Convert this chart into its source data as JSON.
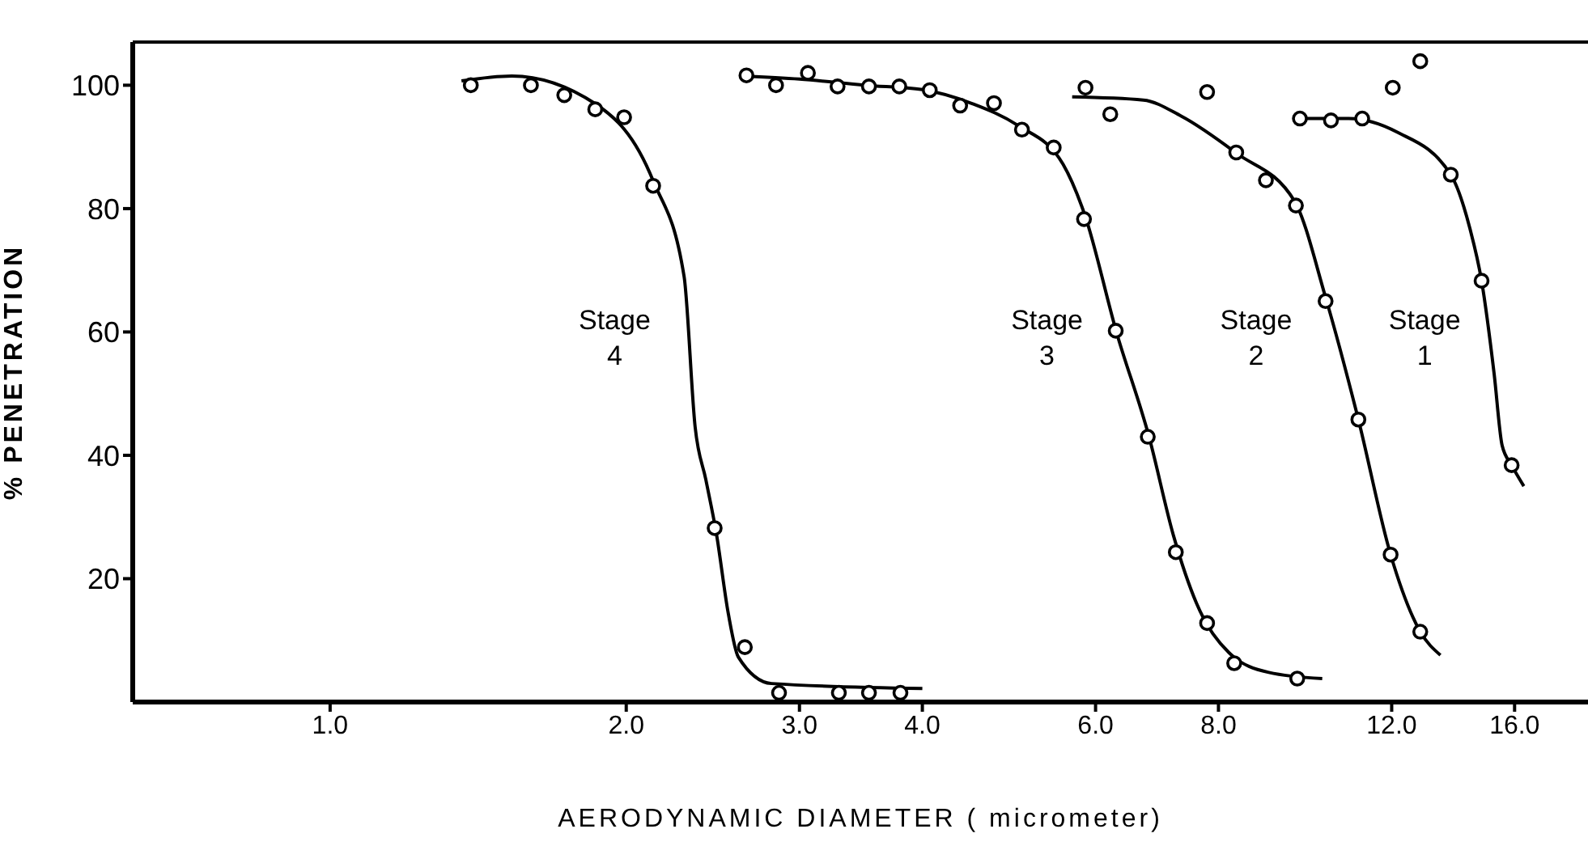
{
  "chart_data": {
    "type": "scatter",
    "xlabel": "AERODYNAMIC DIAMETER ( micrometer)",
    "ylabel": "% PENETRATION",
    "log": "x",
    "marker": "circle",
    "grid": false,
    "xlim": [
      0.63,
      19
    ],
    "ylim": [
      0,
      107
    ],
    "xticks": [
      {
        "value": 1,
        "label": "1.0"
      },
      {
        "value": 2,
        "label": "2.0"
      },
      {
        "value": 3,
        "label": "3.0"
      },
      {
        "value": 4,
        "label": "4.0"
      },
      {
        "value": 6,
        "label": "6.0"
      },
      {
        "value": 8,
        "label": "8.0"
      },
      {
        "value": 12,
        "label": "12.0"
      },
      {
        "value": 16,
        "label": "16.0"
      }
    ],
    "yticks": [
      20,
      40,
      60,
      80,
      100
    ],
    "series": [
      {
        "color": "#000000",
        "x": [
          1.39,
          1.6,
          1.73,
          1.86,
          1.99,
          2.13,
          2.46,
          2.64,
          2.86,
          3.29,
          3.53,
          3.8
        ],
        "values": [
          100,
          100,
          98.4,
          96.1,
          94.8,
          83.7,
          28.2,
          8.9,
          1.5,
          1.5,
          1.5,
          1.5
        ]
      },
      {
        "type": "line",
        "marker": "none",
        "color": "#000000",
        "x": [
          1.36,
          1.53,
          1.86,
          2.13,
          2.29,
          2.35,
          2.41,
          2.47,
          2.54,
          2.6,
          2.81,
          4.0
        ],
        "values": [
          100.7,
          101.5,
          97,
          84.5,
          69,
          44.6,
          36,
          27.3,
          14.3,
          7.3,
          3,
          2.2
        ]
      },
      {
        "color": "#000000",
        "x": [
          2.65,
          2.84,
          3.06,
          3.28,
          3.53,
          3.79,
          4.07,
          4.37,
          4.73,
          5.05,
          5.44,
          5.84,
          6.29,
          6.78,
          7.24,
          7.79,
          8.3,
          9.62
        ],
        "values": [
          101.6,
          100,
          102,
          99.8,
          99.8,
          99.8,
          99.2,
          96.7,
          97.1,
          92.8,
          89.9,
          78.3,
          60.2,
          43,
          24.3,
          12.8,
          6.3,
          3.8
        ]
      },
      {
        "type": "line",
        "marker": "none",
        "color": "#000000",
        "x": [
          2.62,
          3.0,
          3.5,
          4.0,
          4.5,
          5.0,
          5.56,
          5.85,
          6.3,
          6.8,
          7.2,
          7.6,
          8.2,
          9.0,
          10.2
        ],
        "values": [
          101.5,
          101,
          100,
          99.3,
          97,
          93.5,
          87.2,
          79,
          60,
          43,
          27,
          16,
          8,
          4.8,
          3.8
        ]
      },
      {
        "color": "#000000",
        "x": [
          5.86,
          6.21,
          7.79,
          8.34,
          8.94,
          9.59,
          10.28,
          11.1,
          11.97,
          12.83
        ],
        "values": [
          99.6,
          95.3,
          98.9,
          89.1,
          84.6,
          80.5,
          65,
          45.8,
          23.9,
          11.4
        ]
      },
      {
        "type": "line",
        "marker": "none",
        "color": "#000000",
        "x": [
          5.68,
          6.71,
          7.33,
          8.34,
          9.56,
          10.28,
          11.1,
          11.97,
          12.83,
          13.45
        ],
        "values": [
          98.1,
          97.6,
          95,
          89,
          81.2,
          65.6,
          45.8,
          23.9,
          11.4,
          7.6
        ]
      },
      {
        "color": "#000000",
        "x": [
          9.68,
          10.41,
          11.2,
          12.03,
          12.83,
          13.78,
          14.81,
          15.89
        ],
        "values": [
          94.6,
          94.3,
          94.6,
          99.6,
          103.9,
          85.5,
          68.3,
          38.4
        ]
      },
      {
        "type": "line",
        "marker": "none",
        "color": "#000000",
        "x": [
          9.56,
          10.85,
          12.15,
          13.78,
          14.41,
          14.81,
          15.25,
          15.54,
          15.89,
          16.35
        ],
        "values": [
          94.6,
          94.6,
          92.4,
          85.5,
          76.8,
          68.3,
          53.3,
          41.6,
          38.4,
          35
        ]
      }
    ],
    "annotations": [
      "Stage\n4",
      "Stage\n3",
      "Stage\n2",
      "Stage\n1"
    ]
  }
}
